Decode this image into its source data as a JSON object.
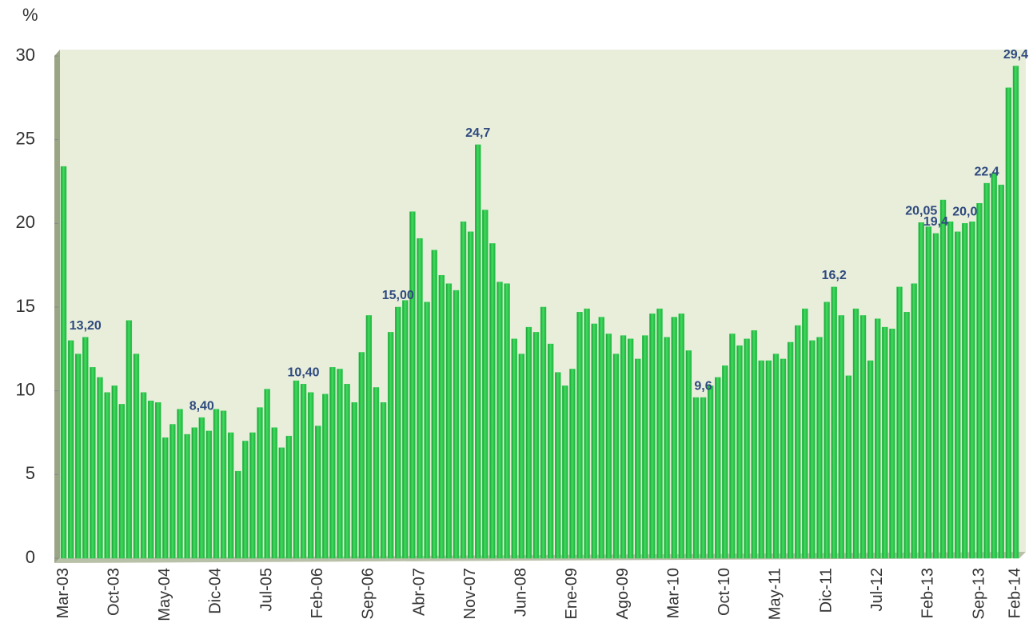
{
  "chart_data": {
    "type": "bar",
    "y_label": "%",
    "color": "#2fc94f",
    "categories": [
      "Mar-03",
      null,
      null,
      null,
      null,
      null,
      null,
      "Oct-03",
      null,
      null,
      null,
      null,
      null,
      null,
      "May-04",
      null,
      null,
      null,
      null,
      null,
      null,
      "Dic-04",
      null,
      null,
      null,
      null,
      null,
      null,
      "Jul-05",
      null,
      null,
      null,
      null,
      null,
      null,
      "Feb-06",
      null,
      null,
      null,
      null,
      null,
      null,
      "Sep-06",
      null,
      null,
      null,
      null,
      null,
      null,
      "Abr-07",
      null,
      null,
      null,
      null,
      null,
      null,
      "Nov-07",
      null,
      null,
      null,
      null,
      null,
      null,
      "Jun-08",
      null,
      null,
      null,
      null,
      null,
      null,
      "Ene-09",
      null,
      null,
      null,
      null,
      null,
      null,
      "Ago-09",
      null,
      null,
      null,
      null,
      null,
      null,
      "Mar-10",
      null,
      null,
      null,
      null,
      null,
      null,
      "Oct-10",
      null,
      null,
      null,
      null,
      null,
      null,
      "May-11",
      null,
      null,
      null,
      null,
      null,
      null,
      "Dic-11",
      null,
      null,
      null,
      null,
      null,
      null,
      "Jul-12",
      null,
      null,
      null,
      null,
      null,
      null,
      "Feb-13",
      null,
      null,
      null,
      null,
      null,
      null,
      "Sep-13",
      null,
      null,
      null,
      null,
      "Feb-14"
    ],
    "values": [
      23.4,
      13.0,
      12.2,
      13.2,
      11.4,
      10.8,
      9.9,
      10.3,
      9.2,
      14.2,
      12.2,
      9.9,
      9.4,
      9.3,
      7.2,
      8.0,
      8.9,
      7.4,
      7.8,
      8.4,
      7.6,
      8.9,
      8.8,
      7.5,
      5.2,
      7.0,
      7.5,
      9.0,
      10.1,
      7.8,
      6.6,
      7.3,
      10.6,
      10.4,
      9.9,
      7.9,
      9.8,
      11.4,
      11.3,
      10.4,
      9.3,
      12.3,
      14.5,
      10.2,
      9.3,
      13.5,
      15.0,
      15.4,
      20.7,
      19.1,
      15.3,
      18.4,
      16.9,
      16.4,
      16.0,
      20.1,
      19.5,
      24.7,
      20.8,
      18.8,
      16.5,
      16.4,
      13.1,
      12.2,
      13.8,
      13.5,
      15.0,
      12.8,
      11.1,
      10.3,
      11.3,
      14.7,
      14.9,
      14.0,
      14.4,
      13.4,
      12.2,
      13.3,
      13.1,
      11.9,
      13.3,
      14.6,
      14.9,
      13.2,
      14.4,
      14.6,
      12.4,
      9.6,
      9.6,
      10.3,
      10.8,
      11.5,
      13.4,
      12.7,
      13.1,
      13.6,
      11.8,
      11.8,
      12.2,
      11.9,
      12.9,
      13.9,
      14.9,
      13.0,
      13.2,
      15.3,
      16.2,
      14.5,
      10.9,
      14.9,
      14.5,
      11.8,
      14.3,
      13.8,
      13.7,
      16.2,
      14.7,
      16.4,
      20.05,
      19.8,
      19.4,
      21.4,
      20.1,
      19.5,
      20.0,
      20.1,
      21.2,
      22.4,
      23.0,
      22.3,
      28.1,
      29.4
    ],
    "value_labels": [
      null,
      null,
      null,
      "13,20",
      null,
      null,
      null,
      null,
      null,
      null,
      null,
      null,
      null,
      null,
      null,
      null,
      null,
      null,
      null,
      "8,40",
      null,
      null,
      null,
      null,
      null,
      null,
      null,
      null,
      null,
      null,
      null,
      null,
      null,
      "10,40",
      null,
      null,
      null,
      null,
      null,
      null,
      null,
      null,
      null,
      null,
      null,
      null,
      "15,00",
      null,
      null,
      null,
      null,
      null,
      null,
      null,
      null,
      null,
      null,
      "24,7",
      null,
      null,
      null,
      null,
      null,
      null,
      null,
      null,
      null,
      null,
      null,
      null,
      null,
      null,
      null,
      null,
      null,
      null,
      null,
      null,
      null,
      null,
      null,
      null,
      null,
      null,
      null,
      null,
      null,
      null,
      "9,6",
      null,
      null,
      null,
      null,
      null,
      null,
      null,
      null,
      null,
      null,
      null,
      null,
      null,
      null,
      null,
      null,
      null,
      "16,2",
      null,
      null,
      null,
      null,
      null,
      null,
      null,
      null,
      null,
      null,
      null,
      "20,05",
      null,
      "19,4",
      null,
      null,
      null,
      "20,0",
      null,
      null,
      "22,4",
      null,
      null,
      null,
      "29,4"
    ],
    "ylim": [
      0,
      30
    ],
    "yticks": [
      0,
      5,
      10,
      15,
      20,
      25,
      30
    ],
    "grid": false
  }
}
